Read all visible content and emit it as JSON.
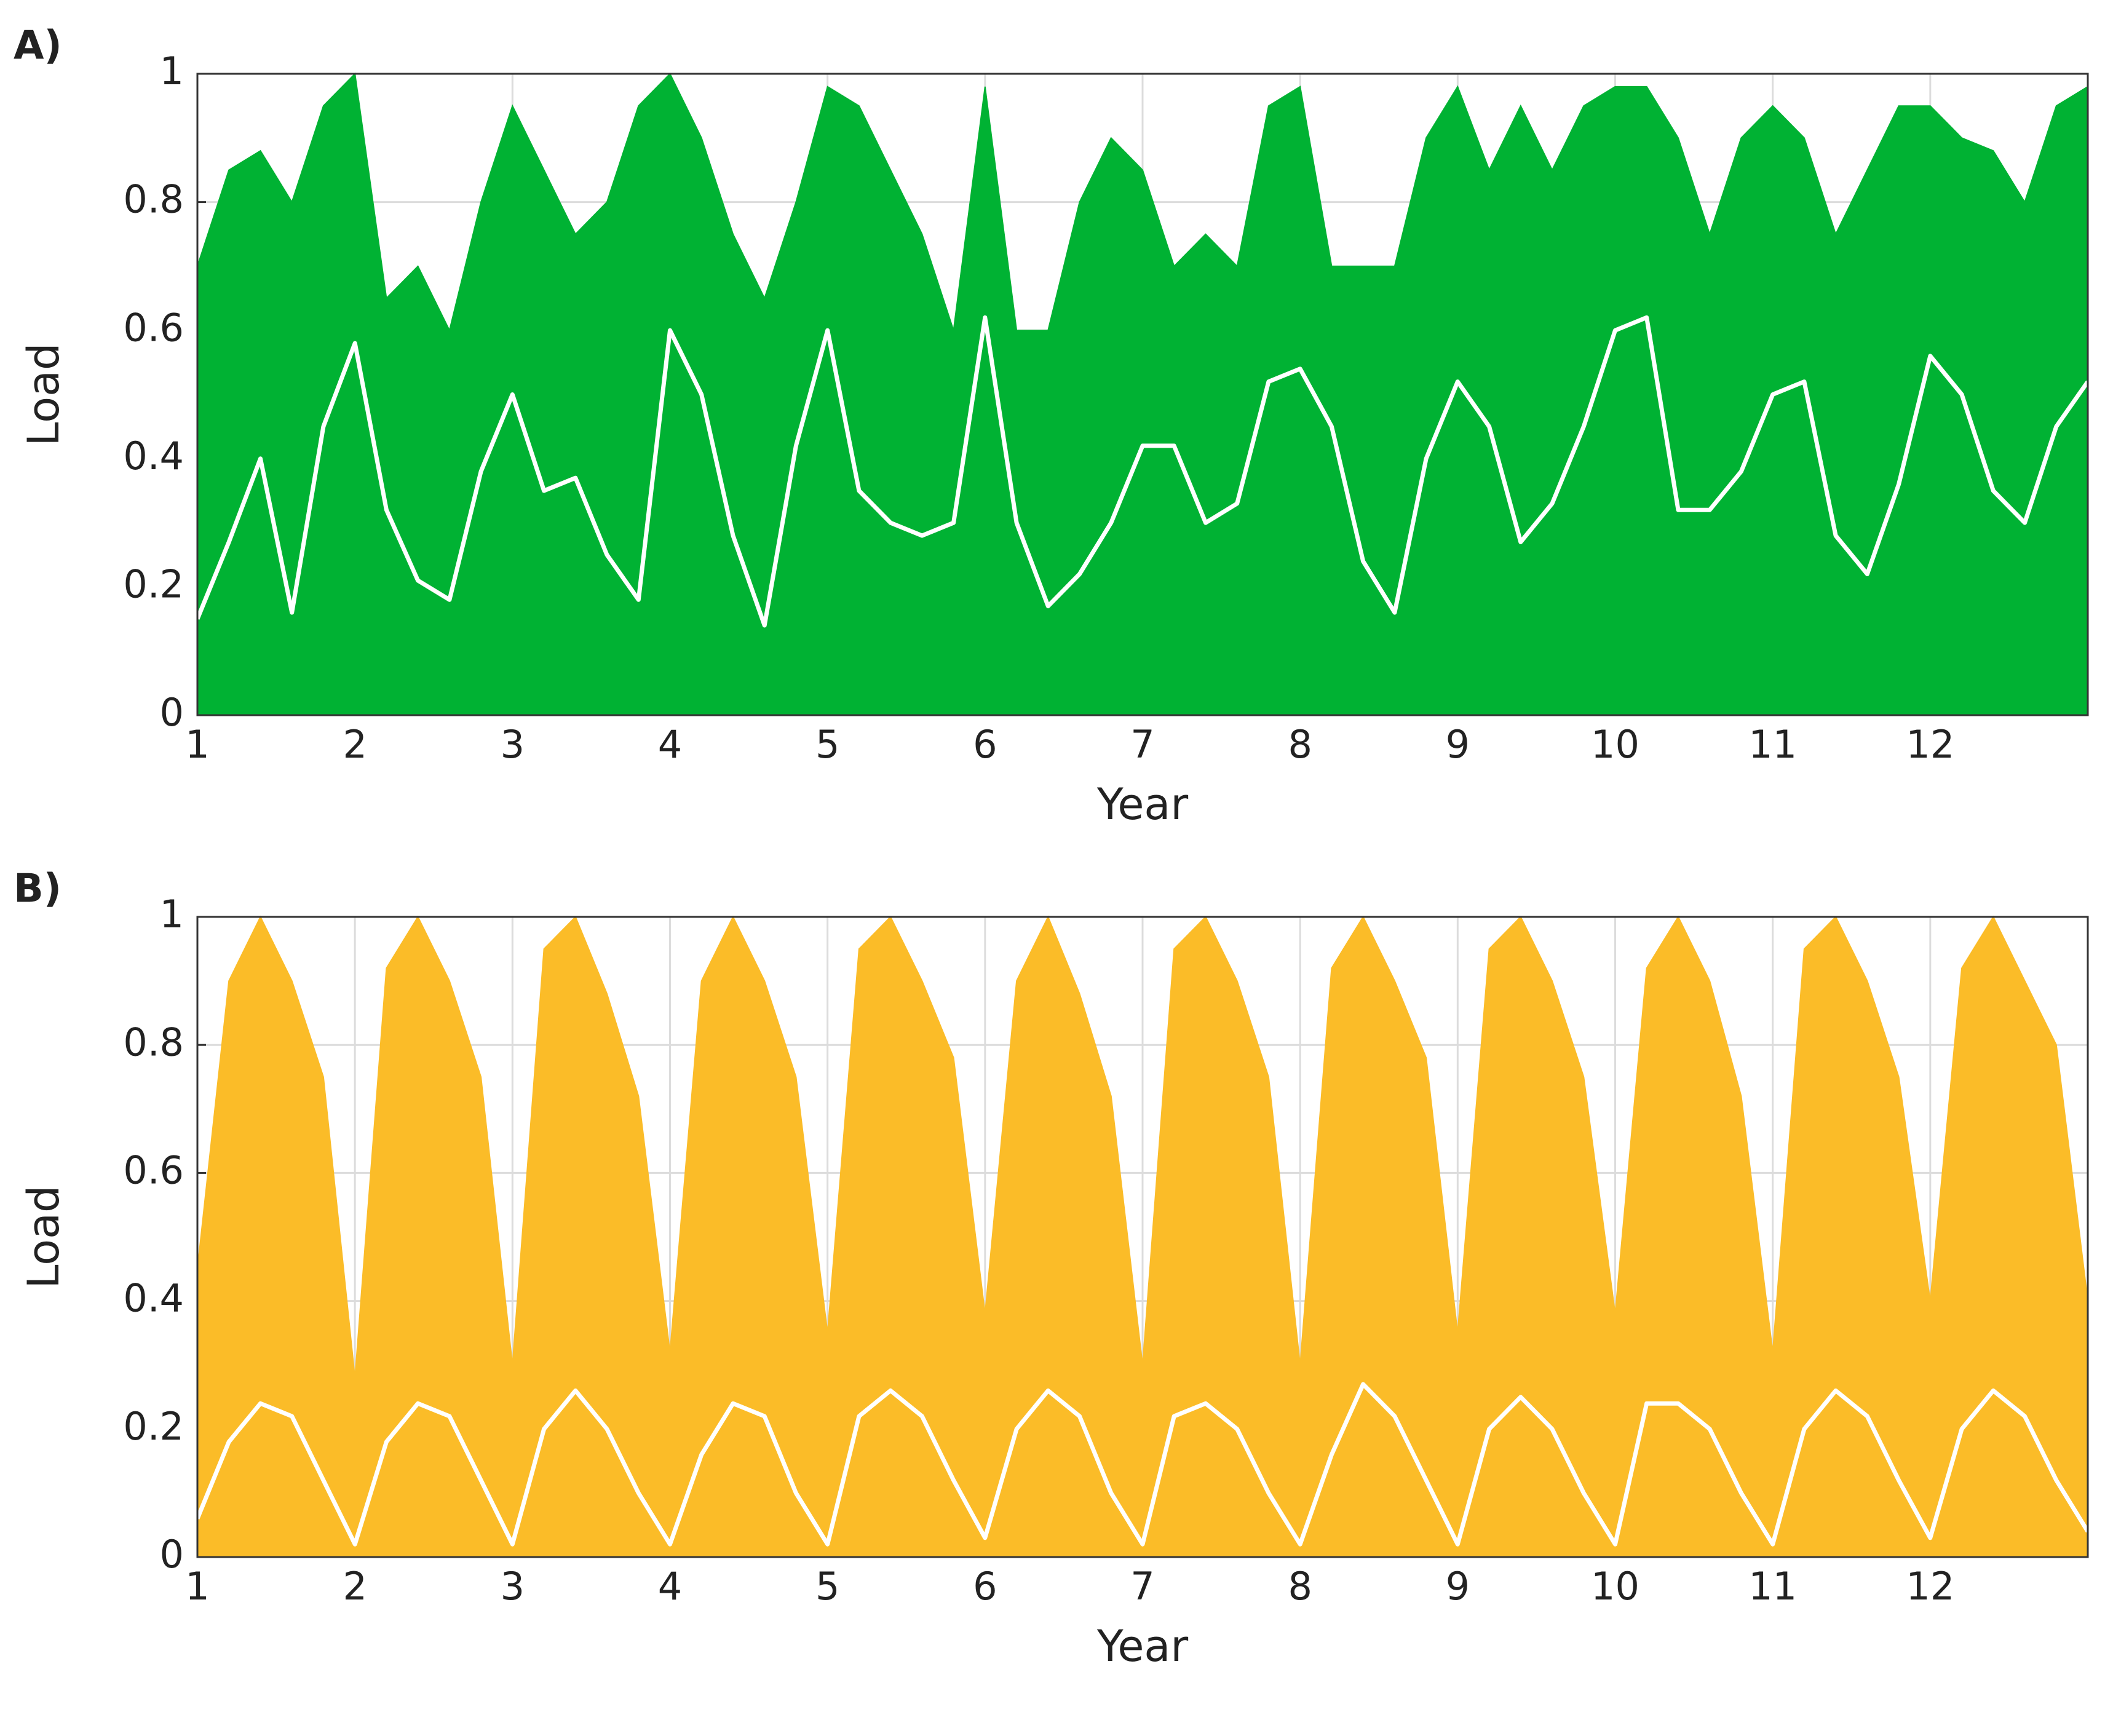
{
  "chart_data": [
    {
      "type": "area_line",
      "panel_label": "A)",
      "xlabel": "Year",
      "ylabel": "Load",
      "xlim": [
        1,
        13
      ],
      "ylim": [
        0,
        1
      ],
      "xticks": [
        1,
        2,
        3,
        4,
        5,
        6,
        7,
        8,
        9,
        10,
        11,
        12
      ],
      "yticks": [
        0,
        0.2,
        0.4,
        0.6,
        0.8,
        1
      ],
      "grid": true,
      "x": [
        1,
        1.2,
        1.4,
        1.6,
        1.8,
        2,
        2.2,
        2.4,
        2.6,
        2.8,
        3,
        3.2,
        3.4,
        3.6,
        3.8,
        4,
        4.2,
        4.4,
        4.6,
        4.8,
        5,
        5.2,
        5.4,
        5.6,
        5.8,
        6,
        6.2,
        6.4,
        6.6,
        6.8,
        7,
        7.2,
        7.4,
        7.6,
        7.8,
        8,
        8.2,
        8.4,
        8.6,
        8.8,
        9,
        9.2,
        9.4,
        9.6,
        9.8,
        10,
        10.2,
        10.4,
        10.6,
        10.8,
        11,
        11.2,
        11.4,
        11.6,
        11.8,
        12,
        12.2,
        12.4,
        12.6,
        12.8,
        13
      ],
      "series": [
        {
          "style": "area",
          "color": "#00b233",
          "values": [
            0.7,
            0.85,
            0.88,
            0.8,
            0.95,
            1.0,
            0.65,
            0.7,
            0.6,
            0.8,
            0.95,
            0.85,
            0.75,
            0.8,
            0.95,
            1.0,
            0.9,
            0.75,
            0.65,
            0.8,
            0.98,
            0.95,
            0.85,
            0.75,
            0.6,
            0.98,
            0.6,
            0.6,
            0.8,
            0.9,
            0.85,
            0.7,
            0.75,
            0.7,
            0.95,
            0.98,
            0.7,
            0.7,
            0.7,
            0.9,
            0.98,
            0.85,
            0.95,
            0.85,
            0.95,
            0.98,
            0.98,
            0.9,
            0.75,
            0.9,
            0.95,
            0.9,
            0.75,
            0.85,
            0.95,
            0.95,
            0.9,
            0.88,
            0.8,
            0.95,
            0.98
          ]
        },
        {
          "style": "line",
          "color": "#ffffff",
          "values": [
            0.15,
            0.27,
            0.4,
            0.16,
            0.45,
            0.58,
            0.32,
            0.21,
            0.18,
            0.38,
            0.5,
            0.35,
            0.37,
            0.25,
            0.18,
            0.6,
            0.5,
            0.28,
            0.14,
            0.42,
            0.6,
            0.35,
            0.3,
            0.28,
            0.3,
            0.62,
            0.3,
            0.17,
            0.22,
            0.3,
            0.42,
            0.42,
            0.3,
            0.33,
            0.52,
            0.54,
            0.45,
            0.24,
            0.16,
            0.4,
            0.52,
            0.45,
            0.27,
            0.33,
            0.45,
            0.6,
            0.62,
            0.32,
            0.32,
            0.38,
            0.5,
            0.52,
            0.28,
            0.22,
            0.36,
            0.56,
            0.5,
            0.35,
            0.3,
            0.45,
            0.52
          ]
        }
      ]
    },
    {
      "type": "area_line",
      "panel_label": "B)",
      "xlabel": "Year",
      "ylabel": "Load",
      "xlim": [
        1,
        13
      ],
      "ylim": [
        0,
        1
      ],
      "xticks": [
        1,
        2,
        3,
        4,
        5,
        6,
        7,
        8,
        9,
        10,
        11,
        12
      ],
      "yticks": [
        0,
        0.2,
        0.4,
        0.6,
        0.8,
        1
      ],
      "grid": true,
      "x": [
        1,
        1.2,
        1.4,
        1.6,
        1.8,
        2,
        2.2,
        2.4,
        2.6,
        2.8,
        3,
        3.2,
        3.4,
        3.6,
        3.8,
        4,
        4.2,
        4.4,
        4.6,
        4.8,
        5,
        5.2,
        5.4,
        5.6,
        5.8,
        6,
        6.2,
        6.4,
        6.6,
        6.8,
        7,
        7.2,
        7.4,
        7.6,
        7.8,
        8,
        8.2,
        8.4,
        8.6,
        8.8,
        9,
        9.2,
        9.4,
        9.6,
        9.8,
        10,
        10.2,
        10.4,
        10.6,
        10.8,
        11,
        11.2,
        11.4,
        11.6,
        11.8,
        12,
        12.2,
        12.4,
        12.6,
        12.8,
        13
      ],
      "series": [
        {
          "style": "area",
          "color": "#fbbc28",
          "values": [
            0.45,
            0.9,
            1.0,
            0.9,
            0.75,
            0.28,
            0.92,
            1.0,
            0.9,
            0.75,
            0.3,
            0.95,
            1.0,
            0.88,
            0.72,
            0.32,
            0.9,
            1.0,
            0.9,
            0.75,
            0.35,
            0.95,
            1.0,
            0.9,
            0.78,
            0.38,
            0.9,
            1.0,
            0.88,
            0.72,
            0.3,
            0.95,
            1.0,
            0.9,
            0.75,
            0.3,
            0.92,
            1.0,
            0.9,
            0.78,
            0.35,
            0.95,
            1.0,
            0.9,
            0.75,
            0.38,
            0.92,
            1.0,
            0.9,
            0.72,
            0.32,
            0.95,
            1.0,
            0.9,
            0.75,
            0.4,
            0.92,
            1.0,
            0.9,
            0.8,
            0.4
          ]
        },
        {
          "style": "line",
          "color": "#ffffff",
          "values": [
            0.06,
            0.18,
            0.24,
            0.22,
            0.12,
            0.02,
            0.18,
            0.24,
            0.22,
            0.12,
            0.02,
            0.2,
            0.26,
            0.2,
            0.1,
            0.02,
            0.16,
            0.24,
            0.22,
            0.1,
            0.02,
            0.22,
            0.26,
            0.22,
            0.12,
            0.03,
            0.2,
            0.26,
            0.22,
            0.1,
            0.02,
            0.22,
            0.24,
            0.2,
            0.1,
            0.02,
            0.16,
            0.27,
            0.22,
            0.12,
            0.02,
            0.2,
            0.25,
            0.2,
            0.1,
            0.02,
            0.24,
            0.24,
            0.2,
            0.1,
            0.02,
            0.2,
            0.26,
            0.22,
            0.12,
            0.03,
            0.2,
            0.26,
            0.22,
            0.12,
            0.04
          ]
        }
      ]
    }
  ]
}
